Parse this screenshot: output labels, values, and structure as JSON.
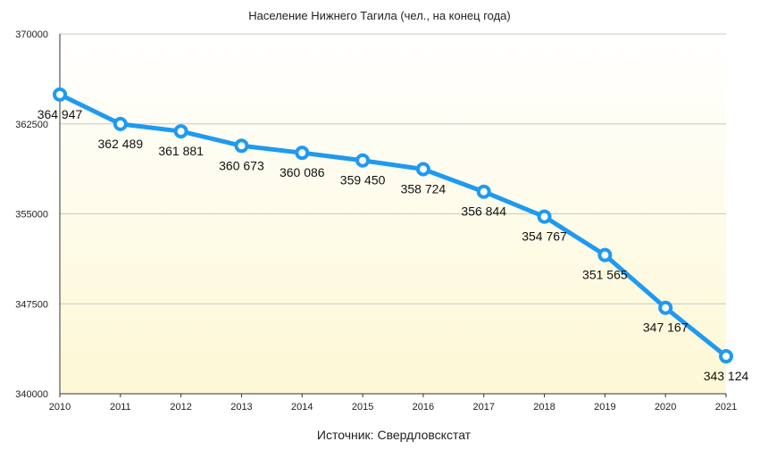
{
  "chart_data": {
    "type": "line",
    "title": "Население Нижнего Тагила (чел., на конец года)",
    "source": "Источник: Свердловскстат",
    "xlabel": "",
    "ylabel": "",
    "x": [
      "2010",
      "2011",
      "2012",
      "2013",
      "2014",
      "2015",
      "2016",
      "2017",
      "2018",
      "2019",
      "2020",
      "2021"
    ],
    "series": [
      {
        "values": [
          364947,
          362489,
          361881,
          360673,
          360086,
          359450,
          358724,
          356844,
          354767,
          351565,
          347167,
          343124
        ],
        "labels": [
          "364 947",
          "362 489",
          "361 881",
          "360 673",
          "360 086",
          "359 450",
          "358 724",
          "356 844",
          "354 767",
          "351 565",
          "347 167",
          "343 124"
        ]
      }
    ],
    "ylim": [
      340000,
      370000
    ],
    "yticks": [
      340000,
      347500,
      355000,
      362500,
      370000
    ],
    "ytick_labels": [
      "340000",
      "347500",
      "355000",
      "362500",
      "370000"
    ],
    "grid": true,
    "legend": "none",
    "colors": {
      "line": "#1e9af0",
      "marker_fill": "#ffffff",
      "grid": "#c8c8c8",
      "axis": "#333333",
      "bg_top": "#ffffff",
      "bg_bottom": "#fdf8d4"
    }
  }
}
